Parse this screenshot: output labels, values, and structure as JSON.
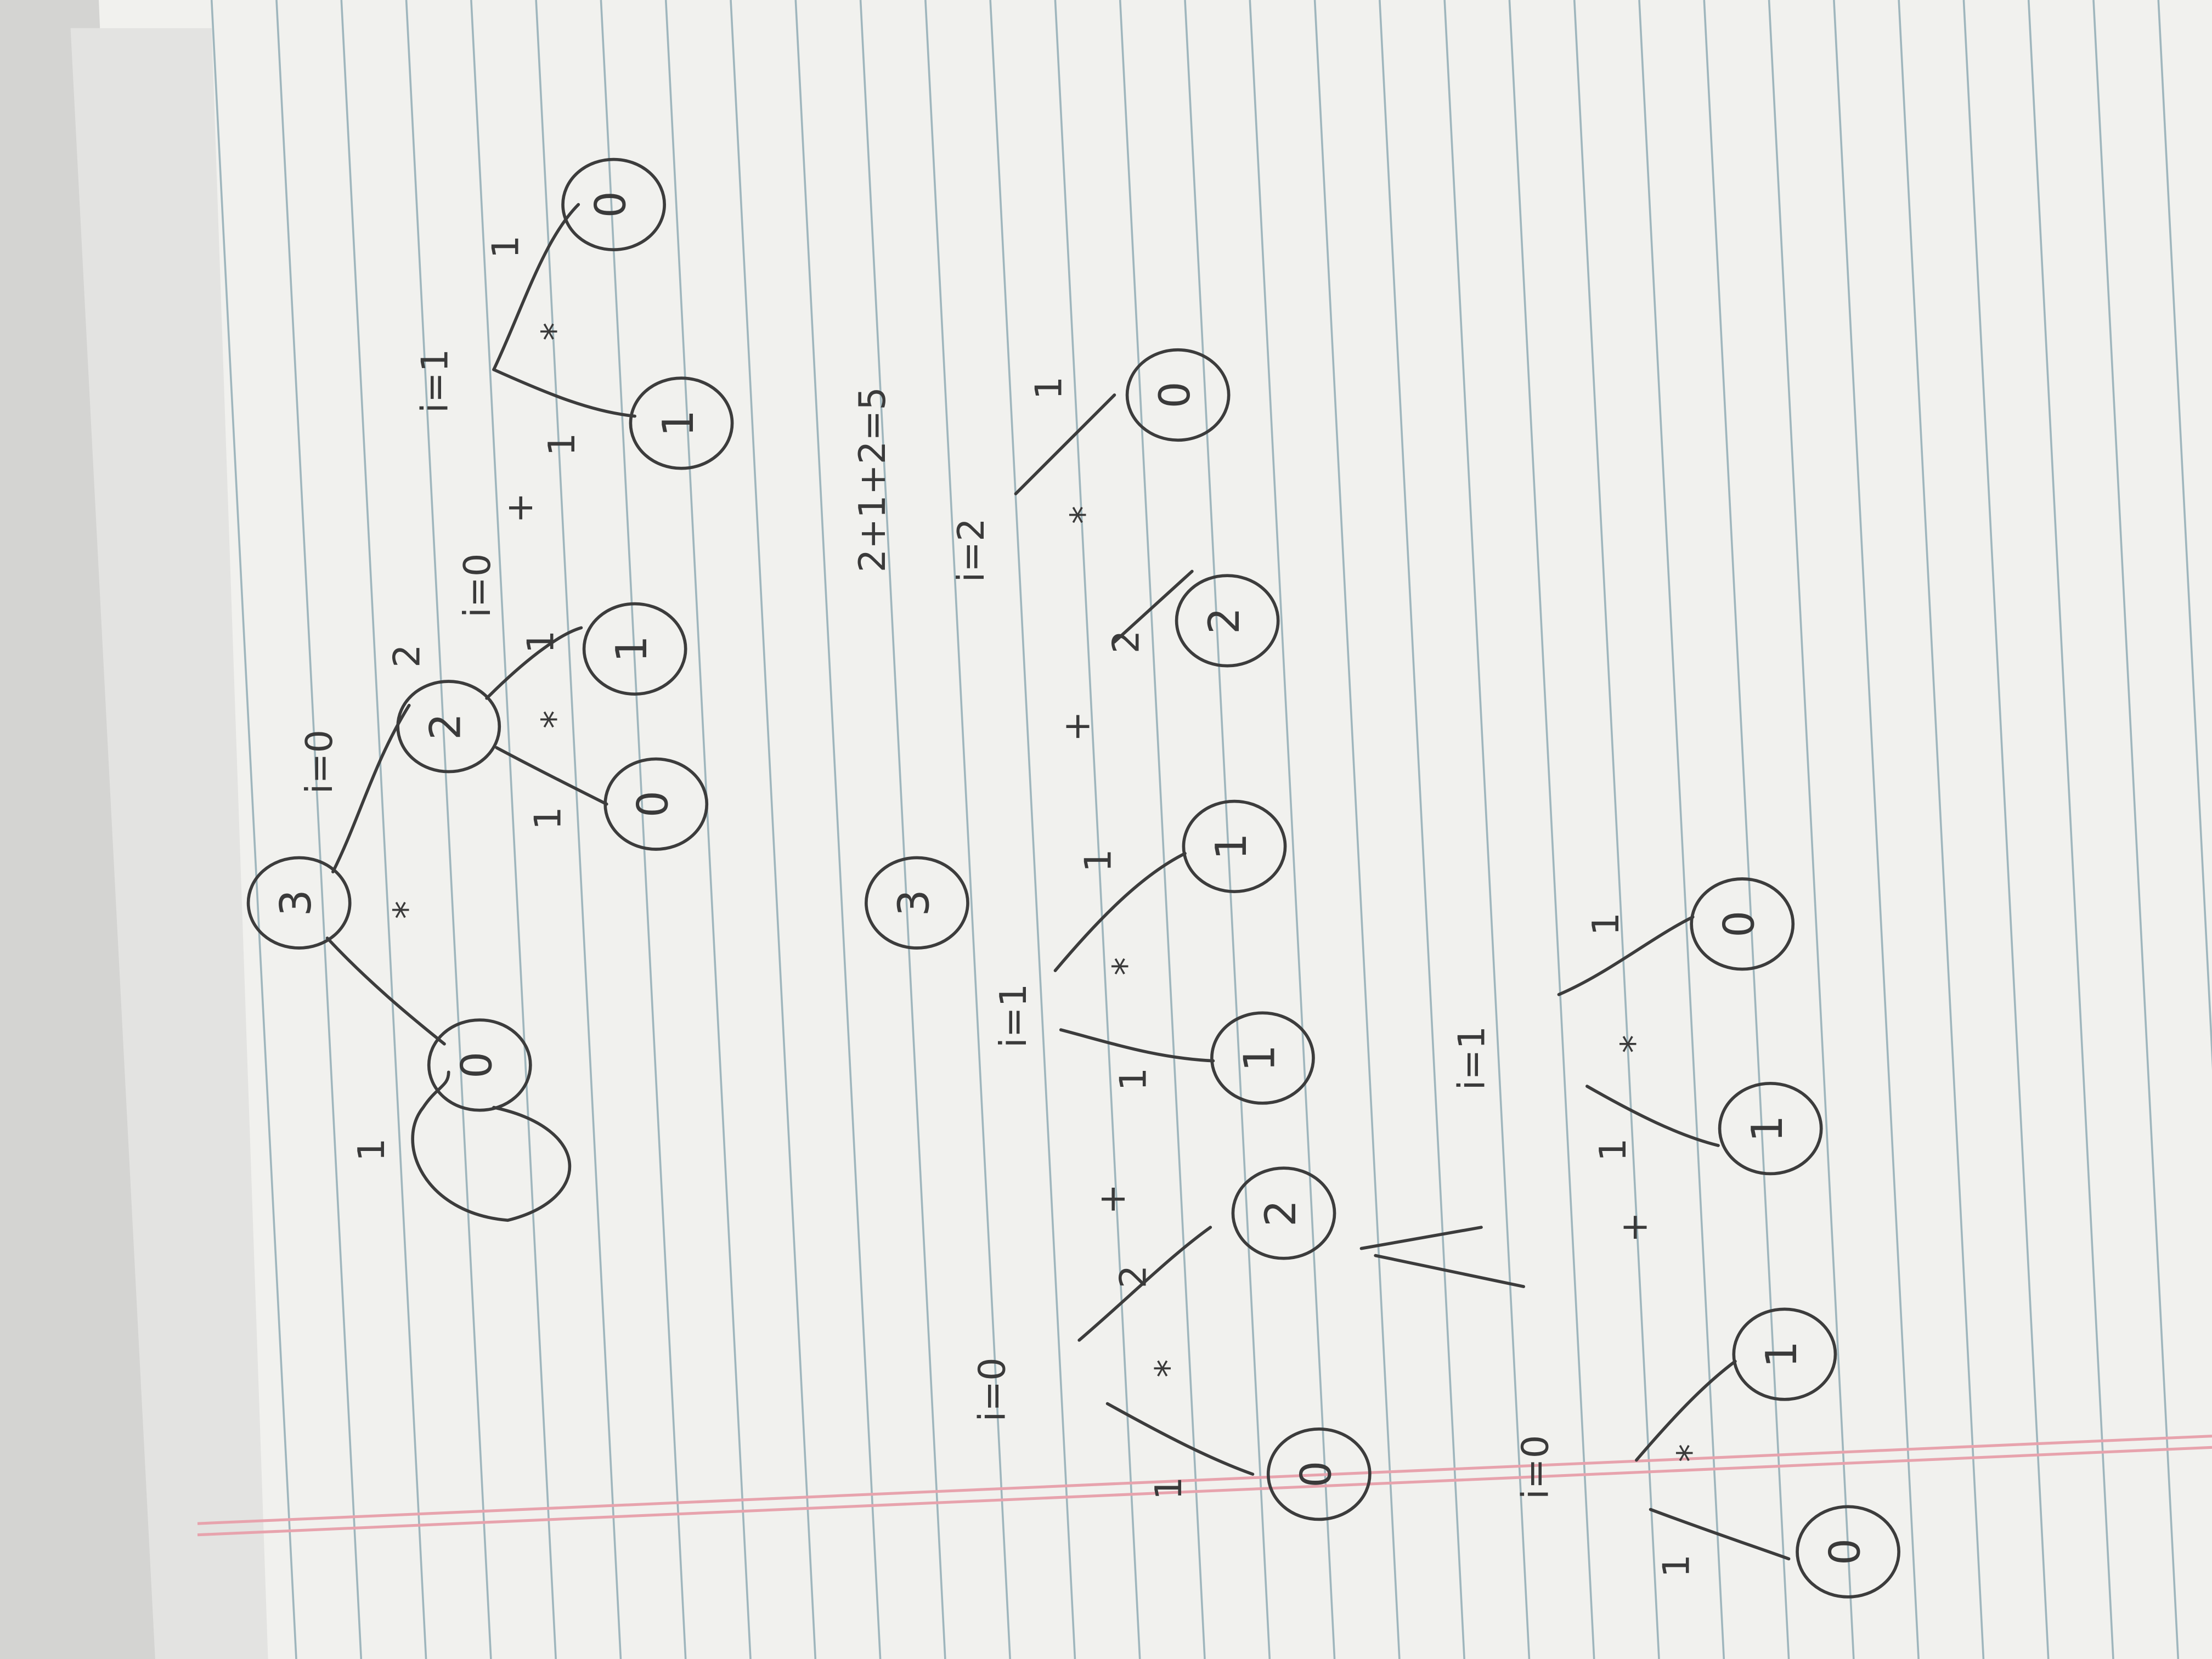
{
  "nodes": [
    {
      "label": "3"
    },
    {
      "label": "2"
    },
    {
      "label": "0"
    },
    {
      "label": "1"
    },
    {
      "label": "0"
    },
    {
      "label": "1"
    },
    {
      "label": "0"
    },
    {
      "label": "3"
    },
    {
      "label": "0"
    },
    {
      "label": "2"
    },
    {
      "label": "1"
    },
    {
      "label": "1"
    },
    {
      "label": "2"
    },
    {
      "label": "0"
    },
    {
      "label": "0"
    },
    {
      "label": "1"
    },
    {
      "label": "1"
    },
    {
      "label": "0"
    }
  ],
  "annotations": [
    "i=0",
    "2",
    "*",
    "i=0",
    "+",
    "*",
    "1",
    "1",
    "i=1",
    "*",
    "1",
    "1",
    "1",
    "2+1+2=5",
    "i=2",
    "i=1",
    "*",
    "1",
    "+",
    "2",
    "*",
    "1",
    "1",
    "+",
    "2",
    "*",
    "i=0",
    "1",
    "i=1",
    "*",
    "1",
    "+",
    "1",
    "i=0",
    "*",
    "1"
  ]
}
